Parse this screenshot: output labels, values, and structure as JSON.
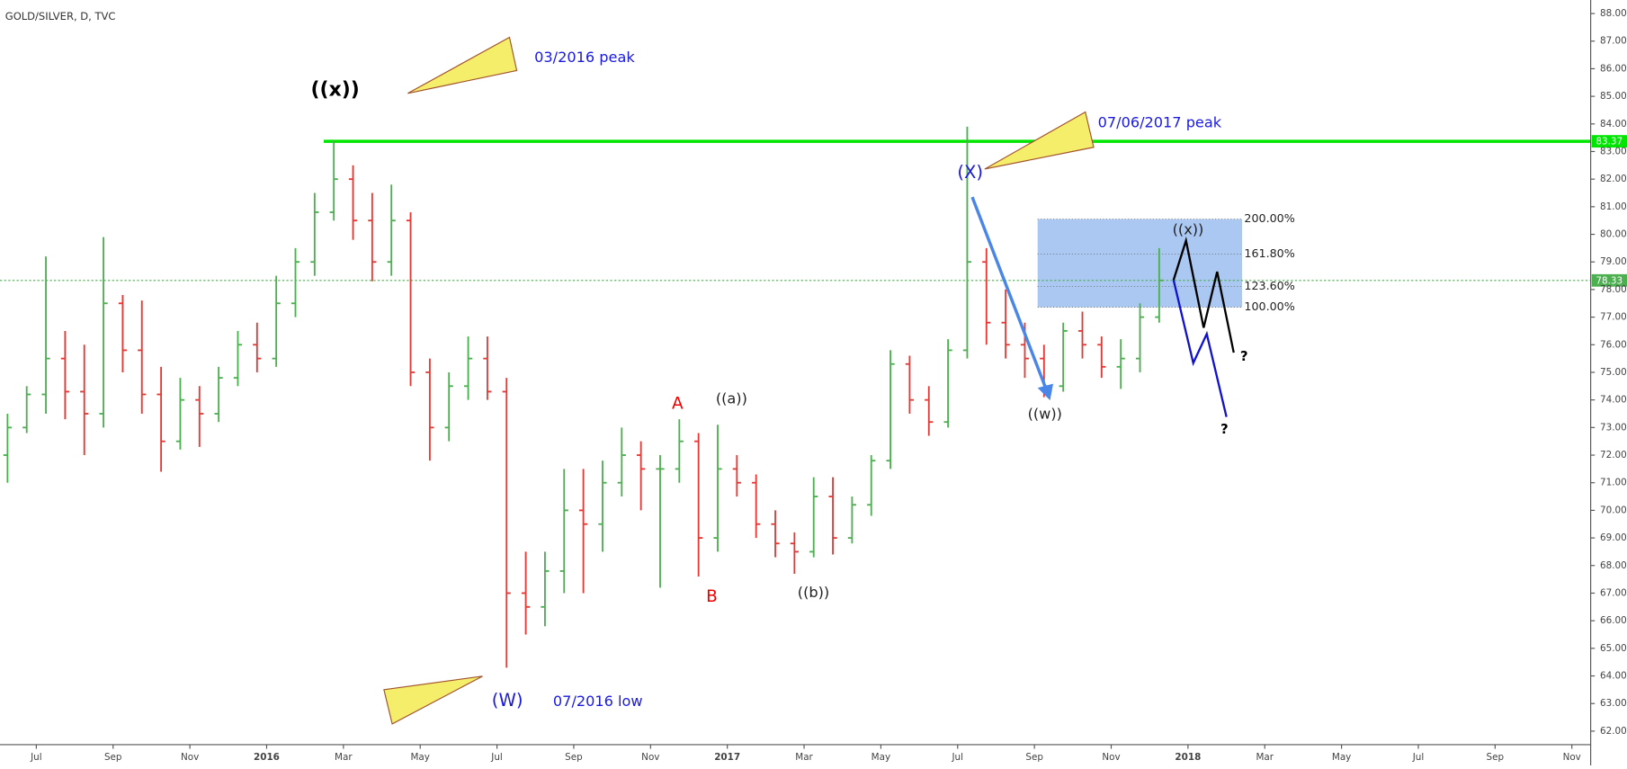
{
  "chart_data": {
    "type": "ohlc",
    "title": "GOLD/SILVER, D, TVC",
    "x": [
      -0.75,
      -0.25,
      0.25,
      0.75,
      1.25,
      1.75,
      2.25,
      2.75,
      3.25,
      3.75,
      4.25,
      4.75,
      5.25,
      5.75,
      6.25,
      6.75,
      7.25,
      7.75,
      8.25,
      8.75,
      9.25,
      9.75,
      10.25,
      10.75,
      11.25,
      11.75,
      12.25,
      12.75,
      13.25,
      13.75,
      14.25,
      14.75,
      15.25,
      15.75,
      16.25,
      16.75,
      17.25,
      17.75,
      18.25,
      18.75,
      19.25,
      19.75,
      20.25,
      20.75,
      21.25,
      21.75,
      22.25,
      22.75,
      23.25,
      23.75,
      24.25,
      24.75,
      25.25,
      25.75,
      26.25,
      26.75,
      27.25,
      27.75,
      28.25,
      28.75,
      29.25
    ],
    "open": [
      72.0,
      73.0,
      74.2,
      75.5,
      74.3,
      73.5,
      77.5,
      75.8,
      74.2,
      72.5,
      74.0,
      73.5,
      74.8,
      76.0,
      75.5,
      77.5,
      79.0,
      80.8,
      82.0,
      80.5,
      79.0,
      80.5,
      75.0,
      73.0,
      74.5,
      75.5,
      74.3,
      67.0,
      66.5,
      67.8,
      70.0,
      69.5,
      71.0,
      72.0,
      71.5,
      71.5,
      72.5,
      69.0,
      71.5,
      71.0,
      69.5,
      68.8,
      68.5,
      70.5,
      69.0,
      70.2,
      71.8,
      75.3,
      74.0,
      73.2,
      75.8,
      79.0,
      76.8,
      76.0,
      75.5,
      74.5,
      76.5,
      76.0,
      75.2,
      75.5,
      77.0
    ],
    "high": [
      73.5,
      74.5,
      79.2,
      76.5,
      76.0,
      79.9,
      77.8,
      77.6,
      75.2,
      74.8,
      74.5,
      75.2,
      76.5,
      76.8,
      78.5,
      79.5,
      81.5,
      83.4,
      82.5,
      81.5,
      81.8,
      80.8,
      75.5,
      75.0,
      76.3,
      76.3,
      74.8,
      68.5,
      68.5,
      71.5,
      71.5,
      71.8,
      73.0,
      72.5,
      72.0,
      73.3,
      72.8,
      73.1,
      72.0,
      71.3,
      70.0,
      69.2,
      71.2,
      71.2,
      70.5,
      72.0,
      75.8,
      75.6,
      74.5,
      76.2,
      83.9,
      79.5,
      78.0,
      76.8,
      76.0,
      76.8,
      77.2,
      76.3,
      76.2,
      77.5,
      79.5
    ],
    "low": [
      71.0,
      72.8,
      73.5,
      73.3,
      72.0,
      73.0,
      75.0,
      73.5,
      71.4,
      72.2,
      72.3,
      73.2,
      74.5,
      75.0,
      75.2,
      77.0,
      78.5,
      80.5,
      79.8,
      78.3,
      78.5,
      74.5,
      71.8,
      72.5,
      74.0,
      74.0,
      64.3,
      65.5,
      65.8,
      67.0,
      67.0,
      68.5,
      70.5,
      70.0,
      67.2,
      71.0,
      67.6,
      68.5,
      70.5,
      69.0,
      68.3,
      67.7,
      68.3,
      68.4,
      68.8,
      69.8,
      71.5,
      73.5,
      72.7,
      73.0,
      75.5,
      76.0,
      75.5,
      74.8,
      74.1,
      74.3,
      75.5,
      74.8,
      74.4,
      75.0,
      76.8
    ],
    "close": [
      73.0,
      74.2,
      75.5,
      74.3,
      73.5,
      77.5,
      75.8,
      74.2,
      72.5,
      74.0,
      73.5,
      74.8,
      76.0,
      75.5,
      77.5,
      79.0,
      80.8,
      82.0,
      80.5,
      79.0,
      80.5,
      75.0,
      73.0,
      74.5,
      75.5,
      74.3,
      67.0,
      66.5,
      67.8,
      70.0,
      69.5,
      71.0,
      72.0,
      71.5,
      71.5,
      72.5,
      69.0,
      71.5,
      71.0,
      69.5,
      68.8,
      68.5,
      70.5,
      69.0,
      70.2,
      71.8,
      75.3,
      74.0,
      73.2,
      75.8,
      79.0,
      76.8,
      76.0,
      75.5,
      74.5,
      76.5,
      76.0,
      75.2,
      75.5,
      77.0,
      78.33
    ],
    "up_color": "#4caf50",
    "down_color": "#e53935",
    "xlim": [
      -0.946,
      40.49
    ],
    "ylim": [
      61.51,
      88.49
    ],
    "xticks": [
      {
        "value": 0,
        "label": "Jul"
      },
      {
        "value": 2,
        "label": "Sep"
      },
      {
        "value": 4,
        "label": "Nov"
      },
      {
        "value": 6,
        "label": "2016"
      },
      {
        "value": 8,
        "label": "Mar"
      },
      {
        "value": 10,
        "label": "May"
      },
      {
        "value": 12,
        "label": "Jul"
      },
      {
        "value": 14,
        "label": "Sep"
      },
      {
        "value": 16,
        "label": "Nov"
      },
      {
        "value": 18,
        "label": "2017"
      },
      {
        "value": 20,
        "label": "Mar"
      },
      {
        "value": 22,
        "label": "May"
      },
      {
        "value": 24,
        "label": "Jul"
      },
      {
        "value": 26,
        "label": "Sep"
      },
      {
        "value": 28,
        "label": "Nov"
      },
      {
        "value": 30,
        "label": "2018"
      },
      {
        "value": 32,
        "label": "Mar"
      },
      {
        "value": 34,
        "label": "May"
      },
      {
        "value": 36,
        "label": "Jul"
      },
      {
        "value": 38,
        "label": "Sep"
      },
      {
        "value": 40,
        "label": "Nov"
      }
    ],
    "yticks": [
      {
        "value": 62,
        "label": "62.00"
      },
      {
        "value": 63,
        "label": "63.00"
      },
      {
        "value": 64,
        "label": "64.00"
      },
      {
        "value": 65,
        "label": "65.00"
      },
      {
        "value": 66,
        "label": "66.00"
      },
      {
        "value": 67,
        "label": "67.00"
      },
      {
        "value": 68,
        "label": "68.00"
      },
      {
        "value": 69,
        "label": "69.00"
      },
      {
        "value": 70,
        "label": "70.00"
      },
      {
        "value": 71,
        "label": "71.00"
      },
      {
        "value": 72,
        "label": "72.00"
      },
      {
        "value": 73,
        "label": "73.00"
      },
      {
        "value": 74,
        "label": "74.00"
      },
      {
        "value": 75,
        "label": "75.00"
      },
      {
        "value": 76,
        "label": "76.00"
      },
      {
        "value": 77,
        "label": "77.00"
      },
      {
        "value": 78,
        "label": "78.00"
      },
      {
        "value": 79,
        "label": "79.00"
      },
      {
        "value": 80,
        "label": "80.00"
      },
      {
        "value": 81,
        "label": "81.00"
      },
      {
        "value": 82,
        "label": "82.00"
      },
      {
        "value": 83,
        "label": "83.00"
      },
      {
        "value": 84,
        "label": "84.00"
      },
      {
        "value": 85,
        "label": "85.00"
      },
      {
        "value": 86,
        "label": "86.00"
      },
      {
        "value": 87,
        "label": "87.00"
      },
      {
        "value": 88,
        "label": "88.00"
      }
    ],
    "price_lines": [
      {
        "value": 83.37,
        "color": "#00e600",
        "style": "solid"
      },
      {
        "value": 78.33,
        "color": "#4caf50",
        "style": "dotted"
      }
    ],
    "fib_levels": [
      {
        "value": 80.55,
        "label": "200.00%"
      },
      {
        "value": 79.28,
        "label": "161.80%"
      },
      {
        "value": 78.11,
        "label": "123.60%"
      },
      {
        "value": 77.36,
        "label": "100.00%"
      }
    ],
    "fib_color": "#8fb5ee",
    "annotations": [
      "((x))",
      "03/2016 peak",
      "(X)",
      "07/06/2017 peak",
      "A",
      "((a))",
      "B",
      "((b))",
      "(W)",
      "07/2016 low",
      "((w))",
      "((x))",
      "?",
      "?"
    ]
  }
}
